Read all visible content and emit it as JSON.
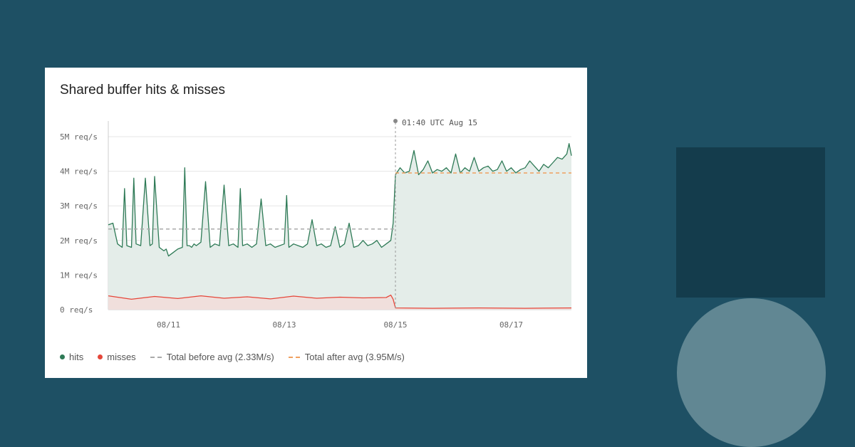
{
  "chart_data": {
    "type": "area",
    "title": "Shared buffer hits & misses",
    "annotation": "01:40 UTC Aug 15",
    "annotation_x": 6.2,
    "x_range": [
      0,
      10
    ],
    "ylim": [
      0,
      5000000
    ],
    "y_ticks": [
      {
        "value": 0,
        "label": "0 req/s"
      },
      {
        "value": 1000000,
        "label": "1M req/s"
      },
      {
        "value": 2000000,
        "label": "2M req/s"
      },
      {
        "value": 3000000,
        "label": "3M req/s"
      },
      {
        "value": 4000000,
        "label": "4M req/s"
      },
      {
        "value": 5000000,
        "label": "5M req/s"
      }
    ],
    "x_ticks": [
      {
        "value": 1.3,
        "label": "08/11"
      },
      {
        "value": 3.8,
        "label": "08/13"
      },
      {
        "value": 6.2,
        "label": "08/15"
      },
      {
        "value": 8.7,
        "label": "08/17"
      }
    ],
    "grid": true,
    "legend_position": "bottom-left",
    "series": [
      {
        "name": "hits",
        "color": "#2e7a56",
        "fill": "#e4ede9",
        "x": [
          0,
          0.1,
          0.2,
          0.3,
          0.35,
          0.4,
          0.5,
          0.55,
          0.6,
          0.7,
          0.8,
          0.9,
          0.95,
          1.0,
          1.1,
          1.2,
          1.25,
          1.3,
          1.4,
          1.5,
          1.6,
          1.65,
          1.7,
          1.75,
          1.8,
          1.85,
          1.9,
          2.0,
          2.1,
          2.2,
          2.3,
          2.4,
          2.5,
          2.6,
          2.7,
          2.8,
          2.85,
          2.9,
          3.0,
          3.1,
          3.2,
          3.3,
          3.4,
          3.5,
          3.6,
          3.7,
          3.8,
          3.85,
          3.9,
          4.0,
          4.1,
          4.2,
          4.3,
          4.4,
          4.5,
          4.6,
          4.7,
          4.8,
          4.9,
          5.0,
          5.1,
          5.2,
          5.3,
          5.4,
          5.5,
          5.6,
          5.7,
          5.8,
          5.9,
          6.0,
          6.1,
          6.15,
          6.2,
          6.25,
          6.3,
          6.4,
          6.5,
          6.6,
          6.7,
          6.8,
          6.9,
          7.0,
          7.1,
          7.2,
          7.3,
          7.4,
          7.5,
          7.6,
          7.7,
          7.8,
          7.9,
          8.0,
          8.1,
          8.2,
          8.3,
          8.4,
          8.5,
          8.6,
          8.7,
          8.8,
          8.9,
          9.0,
          9.1,
          9.2,
          9.3,
          9.4,
          9.5,
          9.6,
          9.7,
          9.8,
          9.9,
          9.95,
          10.0
        ],
        "values": [
          2450000,
          2500000,
          1900000,
          1800000,
          3500000,
          1850000,
          1800000,
          3800000,
          1900000,
          1850000,
          3800000,
          1850000,
          1900000,
          3850000,
          1800000,
          1700000,
          1750000,
          1550000,
          1650000,
          1750000,
          1800000,
          4100000,
          1850000,
          1850000,
          1800000,
          1900000,
          1850000,
          1950000,
          3700000,
          1800000,
          1900000,
          1850000,
          3600000,
          1850000,
          1900000,
          1800000,
          3500000,
          1850000,
          1900000,
          1800000,
          1900000,
          3200000,
          1850000,
          1900000,
          1800000,
          1850000,
          1900000,
          3300000,
          1800000,
          1900000,
          1850000,
          1800000,
          1900000,
          2600000,
          1850000,
          1900000,
          1800000,
          1850000,
          2400000,
          1800000,
          1900000,
          2500000,
          1800000,
          1850000,
          2000000,
          1850000,
          1900000,
          2000000,
          1800000,
          1900000,
          2000000,
          2500000,
          3900000,
          4000000,
          4100000,
          3950000,
          4000000,
          4600000,
          3900000,
          4050000,
          4300000,
          3950000,
          4050000,
          4000000,
          4100000,
          3950000,
          4500000,
          3950000,
          4100000,
          4000000,
          4400000,
          4000000,
          4100000,
          4150000,
          4000000,
          4050000,
          4300000,
          4000000,
          4100000,
          3950000,
          4050000,
          4100000,
          4300000,
          4150000,
          4000000,
          4200000,
          4100000,
          4250000,
          4400000,
          4350000,
          4500000,
          4800000,
          4450000
        ]
      },
      {
        "name": "misses",
        "color": "#e5473a",
        "fill": "#f0dfdc",
        "x": [
          0,
          0.5,
          1,
          1.5,
          2,
          2.5,
          3,
          3.5,
          4,
          4.5,
          5,
          5.5,
          6.0,
          6.1,
          6.15,
          6.2,
          7,
          8,
          9,
          10
        ],
        "values": [
          400000,
          300000,
          380000,
          320000,
          400000,
          330000,
          370000,
          310000,
          390000,
          330000,
          360000,
          340000,
          350000,
          420000,
          300000,
          50000,
          40000,
          50000,
          40000,
          50000
        ]
      }
    ],
    "reference_lines": [
      {
        "name": "Total before avg (2.33M/s)",
        "value": 2330000,
        "x_range": [
          0,
          6.2
        ],
        "color": "#aaaaaa"
      },
      {
        "name": "Total after avg (3.95M/s)",
        "value": 3950000,
        "x_range": [
          6.2,
          10
        ],
        "color": "#f0a060"
      }
    ]
  },
  "legend": {
    "hits": "hits",
    "misses": "misses",
    "before": "Total before avg (2.33M/s)",
    "after": "Total after avg (3.95M/s)"
  }
}
